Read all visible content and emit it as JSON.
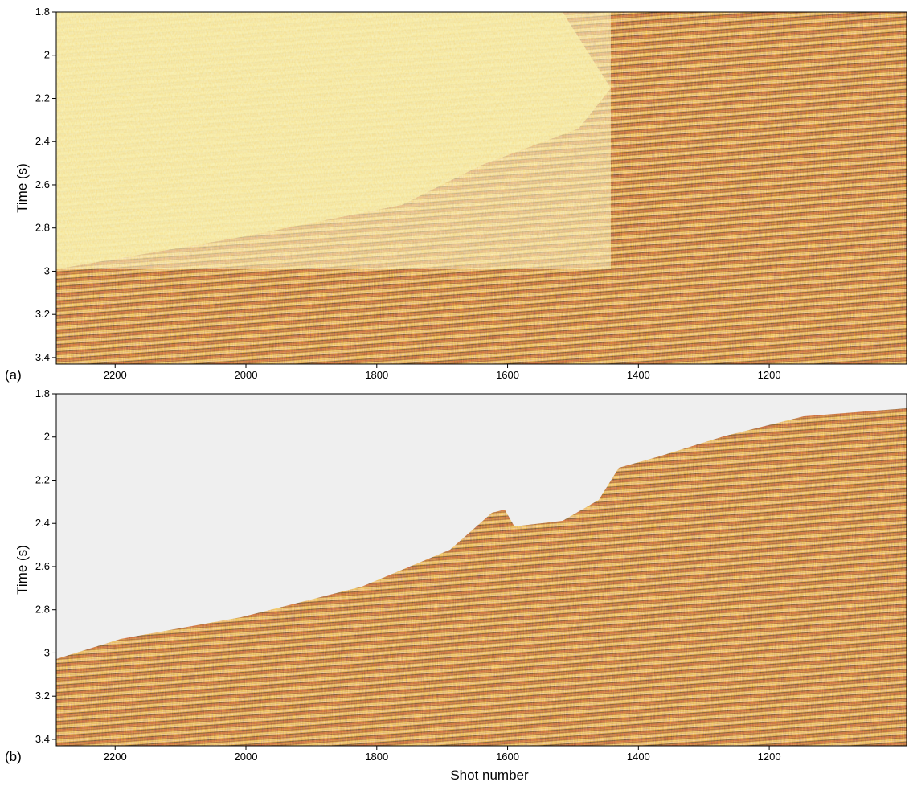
{
  "chart_data": [
    {
      "type": "seismic",
      "panel_label": "(a)",
      "ylabel": "Time (s)",
      "xlim": [
        2290,
        990
      ],
      "xticks": [
        2200,
        2000,
        1800,
        1600,
        1400,
        1200
      ],
      "ylim": [
        1.8,
        3.43
      ],
      "yticks": [
        1.8,
        2,
        2.2,
        2.4,
        2.6,
        2.8,
        3,
        3.2,
        3.4
      ]
    },
    {
      "type": "seismic",
      "panel_label": "(b)",
      "ylabel": "Time (s)",
      "xlabel": "Shot number",
      "xlim": [
        2290,
        990
      ],
      "xticks": [
        2200,
        2000,
        1800,
        1600,
        1400,
        1200
      ],
      "ylim": [
        1.8,
        3.43
      ],
      "yticks": [
        1.8,
        2,
        2.2,
        2.4,
        2.6,
        2.8,
        3,
        3.2,
        3.4
      ]
    }
  ]
}
